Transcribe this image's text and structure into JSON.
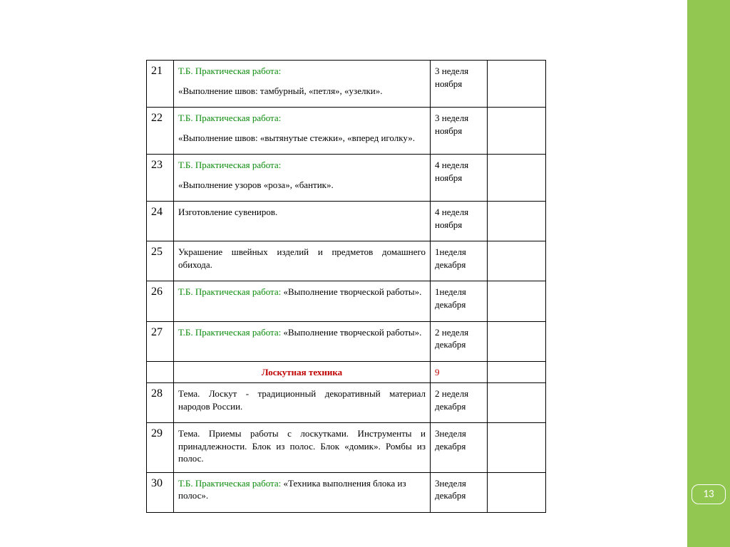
{
  "page_number": "13",
  "colors": {
    "green_bar": "#92c752",
    "tb_label": "#0a8a0a",
    "section_red": "#c00000",
    "text": "#000000",
    "border": "#000000",
    "background": "#ffffff"
  },
  "table": {
    "rows": [
      {
        "num": "21",
        "tb": "Т.Б.   Практическая работа:",
        "desc": "«Выполнение швов: тамбурный, «петля», «узелки».",
        "date": "3 неделя ноября",
        "justify": false
      },
      {
        "num": "22",
        "tb": "Т.Б.   Практическая работа:",
        "desc": "«Выполнение швов: «вытянутые стежки», «вперед иголку».",
        "date": "3 неделя ноября",
        "justify": false
      },
      {
        "num": "23",
        "tb": "Т.Б.   Практическая работа:",
        "desc": "«Выполнение узоров «роза», «бантик».",
        "date": "4 неделя ноября",
        "justify": false
      },
      {
        "num": "24",
        "tb": "",
        "desc": "Изготовление сувениров.",
        "date": "4 неделя ноября",
        "justify": false
      },
      {
        "num": "25",
        "tb": "",
        "desc": "Украшение швейных изделий и предметов домашнего обихода.",
        "date": "1неделя декабря",
        "justify": true
      },
      {
        "num": "26",
        "tb": "Т.Б.   Практическая   работа:",
        "desc": "«Выполнение творческой работы».",
        "inline": true,
        "date": "1неделя декабря",
        "justify": true
      },
      {
        "num": "27",
        "tb": "Т.Б.   Практическая   работа:",
        "desc": "«Выполнение творческой работы».",
        "inline": true,
        "date": "2 неделя декабря",
        "justify": true
      },
      {
        "section": true,
        "title": "Лоскутная техника",
        "count": "9"
      },
      {
        "num": "28",
        "tb": "",
        "desc": "Тема. Лоскут - традиционный декоративный материал народов России.",
        "date": "2 неделя декабря",
        "justify": true
      },
      {
        "num": "29",
        "tb": "",
        "desc": "Тема. Приемы работы с лоскутками. Инструменты и принадлежности. Блок из полос. Блок «домик». Ромбы из полос.",
        "date": "3неделя декабря",
        "justify": true
      },
      {
        "num": "30",
        "tb": "Т.Б. Практическая работа:",
        "desc": "«Техника выполнения   блока из полос».",
        "inline": true,
        "date": "3неделя декабря",
        "justify": false
      }
    ]
  }
}
